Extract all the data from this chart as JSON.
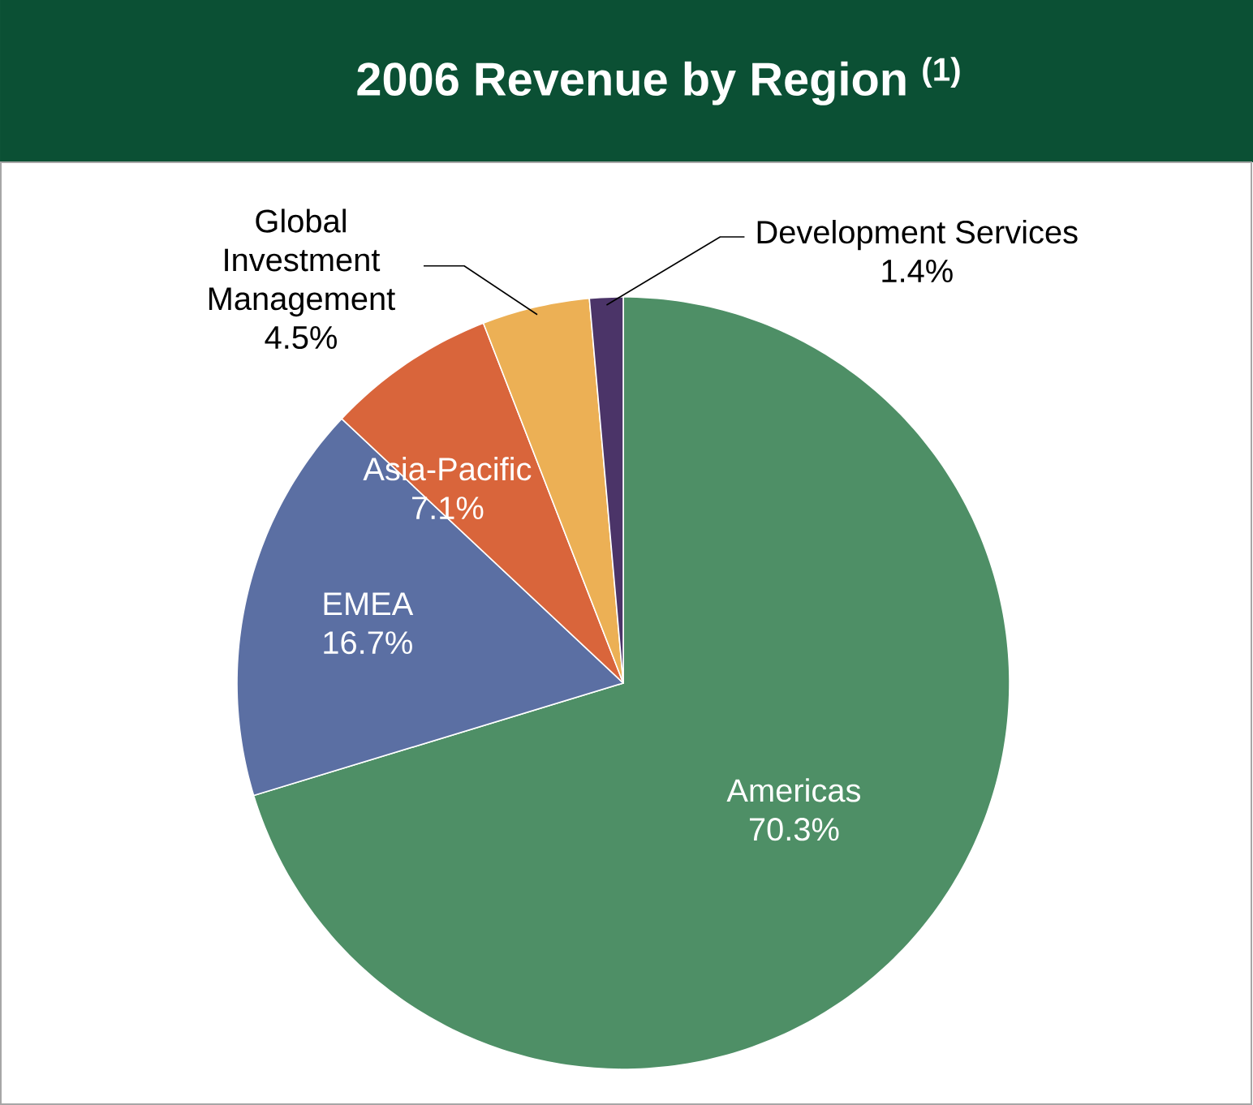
{
  "chart_data": {
    "type": "pie",
    "title": "2006 Revenue by Region $^{(1)}$",
    "categories": [
      "Americas",
      "EMEA",
      "Asia-Pacific",
      "Global Investment Management",
      "Development Services"
    ],
    "values": [
      70.3,
      16.7,
      7.1,
      4.5,
      1.4
    ],
    "value_labels": [
      "70.3%",
      "16.7%",
      "7.1%",
      "4.5%",
      "1.4%"
    ],
    "colors": [
      "#4e8f66",
      "#5b6fa3",
      "#d9653b",
      "#ecb055",
      "#4b3468"
    ]
  }
}
